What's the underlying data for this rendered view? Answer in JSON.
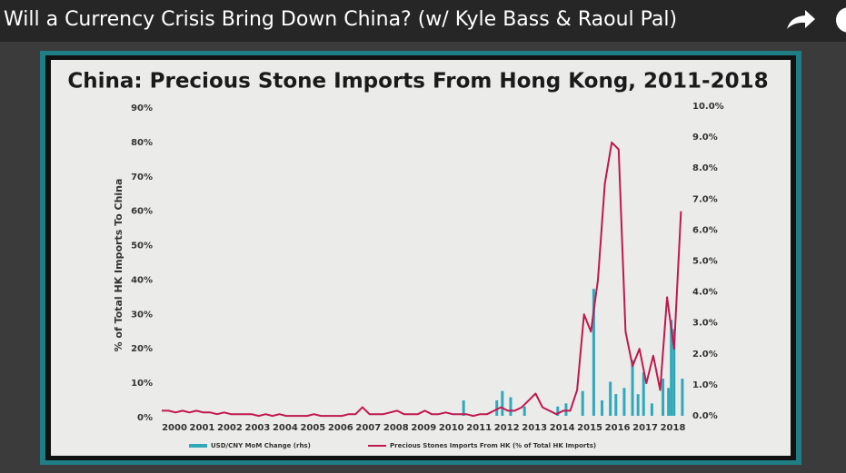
{
  "video_title": "Will a Currency Crisis Bring Down China? (w/ Kyle Bass & Raoul Pal)",
  "chart_data": {
    "type": "combo",
    "title": "China: Precious Stone Imports From Hong Kong, 2011-2018",
    "y_label": "% of Total HK Imports To China",
    "xlim": [
      2000,
      2019
    ],
    "xticks": [
      2000,
      2001,
      2002,
      2003,
      2004,
      2005,
      2006,
      2007,
      2008,
      2009,
      2010,
      2011,
      2012,
      2013,
      2014,
      2015,
      2016,
      2017,
      2018
    ],
    "ylim": [
      0,
      90
    ],
    "yticks": [
      {
        "value": 0,
        "label": "0%"
      },
      {
        "value": 10,
        "label": "10%"
      },
      {
        "value": 20,
        "label": "20%"
      },
      {
        "value": 30,
        "label": "30%"
      },
      {
        "value": 40,
        "label": "40%"
      },
      {
        "value": 50,
        "label": "50%"
      },
      {
        "value": 60,
        "label": "60%"
      },
      {
        "value": 70,
        "label": "70%"
      },
      {
        "value": 80,
        "label": "80%"
      },
      {
        "value": 90,
        "label": "90%"
      }
    ],
    "y2lim": [
      0,
      10
    ],
    "y2ticks": [
      {
        "value": 0,
        "label": "0.0%"
      },
      {
        "value": 1,
        "label": "1.0%"
      },
      {
        "value": 2,
        "label": "2.0%"
      },
      {
        "value": 3,
        "label": "3.0%"
      },
      {
        "value": 4,
        "label": "4.0%"
      },
      {
        "value": 5,
        "label": "5.0%"
      },
      {
        "value": 6,
        "label": "6.0%"
      },
      {
        "value": 7,
        "label": "7.0%"
      },
      {
        "value": 8,
        "label": "8.0%"
      },
      {
        "value": 9,
        "label": "9.0%"
      },
      {
        "value": 10,
        "label": "10.0%"
      }
    ],
    "series": [
      {
        "name": "USD/CNY MoM Change (rhs)",
        "type": "bar",
        "axis": "y2",
        "color": "#2fa9ba",
        "x": [
          2010.9,
          2012.1,
          2012.3,
          2012.6,
          2013.1,
          2014.3,
          2014.6,
          2015.2,
          2015.6,
          2015.9,
          2016.2,
          2016.4,
          2016.7,
          2017.0,
          2017.2,
          2017.4,
          2017.7,
          2018.1,
          2018.3,
          2018.4,
          2018.5,
          2018.8
        ],
        "values": [
          0.5,
          0.5,
          0.8,
          0.6,
          0.3,
          0.3,
          0.4,
          0.8,
          4.1,
          0.5,
          1.1,
          0.7,
          0.9,
          1.8,
          0.7,
          1.4,
          0.4,
          1.2,
          0.9,
          3.1,
          2.8,
          1.2
        ]
      },
      {
        "name": "Precious Stones Imports From HK (% of Total HK Imports)",
        "type": "line",
        "axis": "y",
        "color": "#c0184f",
        "x": [
          2000,
          2000.25,
          2000.5,
          2000.75,
          2001,
          2001.25,
          2001.5,
          2001.75,
          2002,
          2002.25,
          2002.5,
          2002.75,
          2003,
          2003.25,
          2003.5,
          2003.75,
          2004,
          2004.25,
          2004.5,
          2004.75,
          2005,
          2005.25,
          2005.5,
          2005.75,
          2006,
          2006.25,
          2006.5,
          2006.75,
          2007,
          2007.25,
          2007.5,
          2007.75,
          2008,
          2008.25,
          2008.5,
          2008.75,
          2009,
          2009.25,
          2009.5,
          2009.75,
          2010,
          2010.25,
          2010.5,
          2010.75,
          2011,
          2011.25,
          2011.5,
          2011.75,
          2012,
          2012.25,
          2012.5,
          2012.75,
          2013,
          2013.25,
          2013.5,
          2013.75,
          2014,
          2014.25,
          2014.5,
          2014.75,
          2015,
          2015.25,
          2015.5,
          2015.75,
          2016,
          2016.25,
          2016.5,
          2016.75,
          2017,
          2017.25,
          2017.5,
          2017.75,
          2018,
          2018.25,
          2018.5,
          2018.75
        ],
        "values": [
          2,
          2,
          1.5,
          2,
          1.5,
          2,
          1.5,
          1.5,
          1,
          1.5,
          1,
          1,
          1,
          1,
          0.5,
          1,
          0.5,
          1,
          0.5,
          0.5,
          0.5,
          0.5,
          1,
          0.5,
          0.5,
          0.5,
          0.5,
          1,
          1,
          3,
          1,
          1,
          1,
          1.5,
          2,
          1,
          1,
          1,
          2,
          1,
          1,
          1.5,
          1,
          1,
          1,
          0.5,
          1,
          1,
          2,
          3,
          2,
          2,
          3,
          5,
          7,
          3,
          2,
          1,
          2,
          2,
          8,
          30,
          25,
          40,
          68,
          80,
          78,
          25,
          15,
          20,
          10,
          18,
          8,
          35,
          20,
          60
        ]
      }
    ]
  }
}
